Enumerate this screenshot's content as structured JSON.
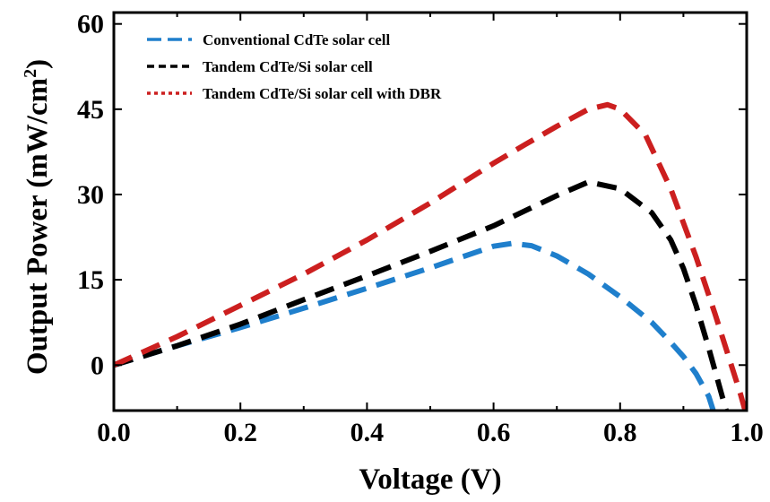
{
  "chart_data": {
    "type": "line",
    "title": "",
    "xlabel": "Voltage (V)",
    "ylabel_main": "Output Power  (mW/cm",
    "ylabel_sup": "2",
    "ylabel_close": ")",
    "xlim": [
      0.0,
      1.0
    ],
    "ylim": [
      -8,
      62
    ],
    "xticks": [
      0.0,
      0.2,
      0.4,
      0.6,
      0.8,
      1.0
    ],
    "xtick_labels": [
      "0.0",
      "0.2",
      "0.4",
      "0.6",
      "0.8",
      "1.0"
    ],
    "yticks": [
      0,
      15,
      30,
      45,
      60
    ],
    "ytick_labels": [
      "0",
      "15",
      "30",
      "45",
      "60"
    ],
    "grid": false,
    "legend_position": "top-left",
    "series": [
      {
        "name": "Conventional CdTe solar cell",
        "color": "#1f7fcc",
        "x": [
          0.0,
          0.1,
          0.2,
          0.3,
          0.4,
          0.5,
          0.55,
          0.6,
          0.63,
          0.66,
          0.7,
          0.75,
          0.8,
          0.85,
          0.88,
          0.9,
          0.92,
          0.94,
          0.95
        ],
        "y": [
          0.0,
          3.4,
          6.6,
          10.0,
          13.5,
          17.1,
          19.0,
          20.9,
          21.4,
          21.0,
          19.2,
          16.0,
          12.0,
          7.5,
          4.0,
          1.5,
          -1.5,
          -5.5,
          -9.0
        ]
      },
      {
        "name": "Tandem CdTe/Si solar cell",
        "color": "#000000",
        "x": [
          0.0,
          0.1,
          0.2,
          0.3,
          0.4,
          0.5,
          0.6,
          0.7,
          0.75,
          0.8,
          0.85,
          0.88,
          0.9,
          0.92,
          0.94,
          0.96,
          0.97
        ],
        "y": [
          0.0,
          3.4,
          7.2,
          11.5,
          15.7,
          20.0,
          24.5,
          29.8,
          32.2,
          31.0,
          26.8,
          22.0,
          17.0,
          10.5,
          3.0,
          -5.0,
          -9.0
        ]
      },
      {
        "name": "Tandem CdTe/Si solar cell with  DBR",
        "color": "#cc1f1f",
        "x": [
          0.0,
          0.1,
          0.2,
          0.3,
          0.4,
          0.5,
          0.6,
          0.65,
          0.7,
          0.75,
          0.78,
          0.8,
          0.84,
          0.88,
          0.92,
          0.95,
          0.97,
          0.99,
          1.0
        ],
        "y": [
          0.0,
          5.0,
          10.5,
          16.0,
          22.0,
          28.5,
          35.5,
          38.8,
          42.0,
          45.0,
          45.8,
          45.0,
          40.5,
          31.0,
          19.0,
          9.0,
          2.0,
          -5.0,
          -9.0
        ]
      }
    ]
  }
}
